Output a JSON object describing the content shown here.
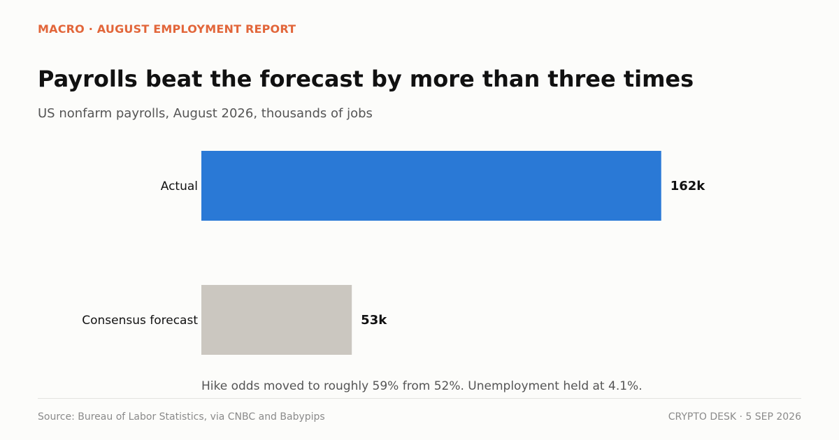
{
  "header": {
    "kicker": "MACRO · AUGUST EMPLOYMENT REPORT",
    "title": "Payrolls beat the forecast by more than three times",
    "subtitle": "US nonfarm payrolls, August 2026, thousands of jobs"
  },
  "chart_data": {
    "type": "bar",
    "orientation": "horizontal",
    "categories": [
      "Actual",
      "Consensus forecast"
    ],
    "values": [
      162,
      53
    ],
    "value_labels": [
      "162k",
      "53k"
    ],
    "colors": [
      "#2a79d6",
      "#cbc7c0"
    ],
    "title": "Payrolls beat the forecast by more than three times",
    "subtitle": "US nonfarm payrolls, August 2026, thousands of jobs",
    "xlim": [
      0,
      200
    ],
    "grid": false,
    "annotation": "Hike odds moved to roughly 59% from 52%. Unemployment held at 4.1%."
  },
  "footer": {
    "source": "Source: Bureau of Labor Statistics, via CNBC and Babypips",
    "brand": "CRYPTO DESK  ·  5 SEP 2026"
  }
}
